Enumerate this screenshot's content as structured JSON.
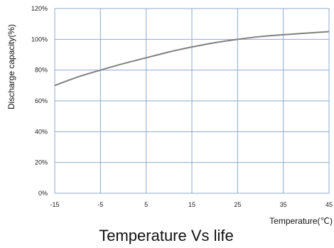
{
  "chart_data": {
    "type": "line",
    "title": "Temperature Vs life",
    "xlabel": "Temperature(℃)",
    "ylabel": "Discharge capacity(%)",
    "x_ticks": [
      -15,
      -5,
      5,
      15,
      25,
      35,
      45
    ],
    "y_ticks": [
      "0%",
      "20%",
      "40%",
      "60%",
      "80%",
      "100%",
      "120%"
    ],
    "xlim": [
      -15,
      45
    ],
    "ylim": [
      0,
      120
    ],
    "grid": true,
    "colors": {
      "line": "#808080",
      "grid": "#8ea9cf"
    },
    "series": [
      {
        "x": [
          -15,
          -10,
          -5,
          0,
          5,
          10,
          15,
          20,
          25,
          30,
          35,
          40,
          45
        ],
        "values": [
          70,
          75.5,
          80,
          84.2,
          88,
          91.8,
          95,
          97.8,
          100,
          101.8,
          103,
          104,
          105
        ]
      }
    ]
  }
}
